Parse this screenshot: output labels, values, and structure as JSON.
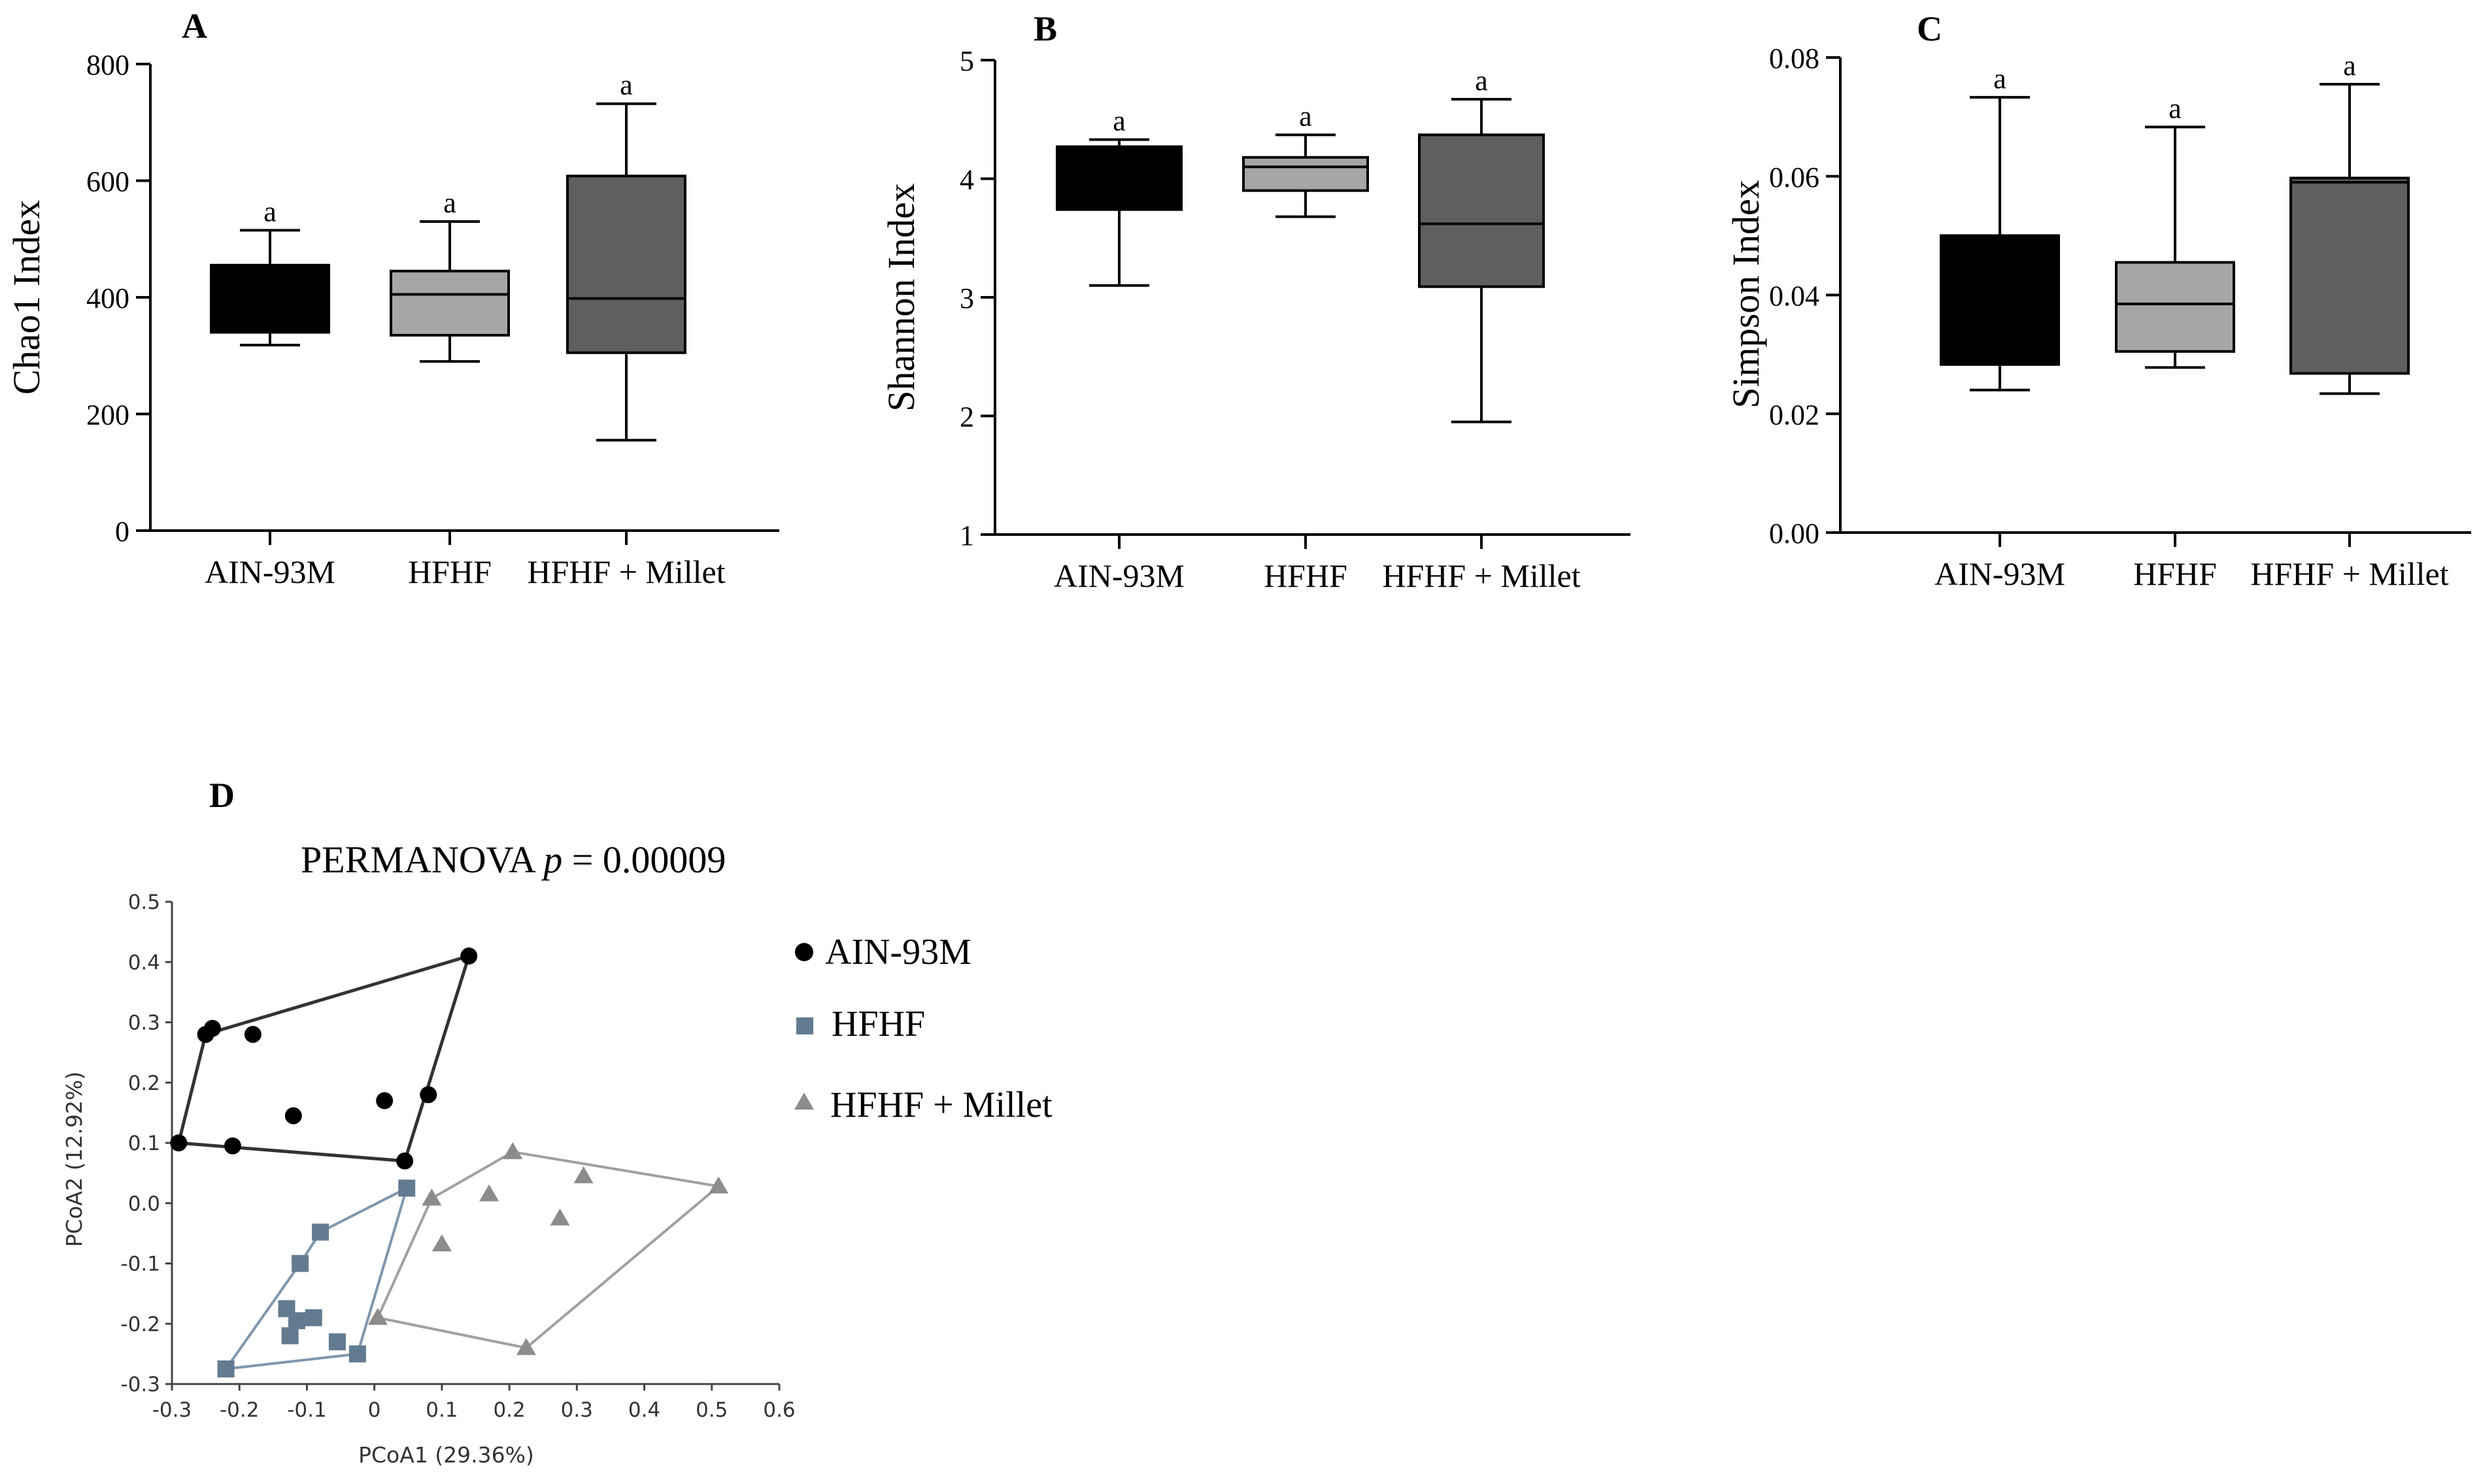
{
  "chart_data": [
    {
      "panel": "A",
      "type": "boxplot",
      "ylabel": "Chao1 Index",
      "ylim": [
        0,
        800
      ],
      "yticks": [
        "0",
        "200",
        "400",
        "600",
        "800"
      ],
      "categories": [
        "AIN-93M",
        "HFHF",
        "HFHF + Millet"
      ],
      "colors": [
        "#000000",
        "#a6a6a6",
        "#5f5f5f"
      ],
      "boxes": [
        {
          "min": 318,
          "q1": 340,
          "median": 455,
          "q3": 455,
          "max": 515
        },
        {
          "min": 290,
          "q1": 335,
          "median": 405,
          "q3": 445,
          "max": 530
        },
        {
          "min": 155,
          "q1": 305,
          "median": 398,
          "q3": 608,
          "max": 732
        }
      ],
      "annotations": [
        "a",
        "a",
        "a"
      ]
    },
    {
      "panel": "B",
      "type": "boxplot",
      "ylabel": "Shannon Index",
      "ylim": [
        1,
        5
      ],
      "yticks": [
        "1",
        "2",
        "3",
        "4",
        "5"
      ],
      "categories": [
        "AIN-93M",
        "HFHF",
        "HFHF + Millet"
      ],
      "colors": [
        "#000000",
        "#a6a6a6",
        "#5f5f5f"
      ],
      "boxes": [
        {
          "min": 3.1,
          "q1": 3.74,
          "median": 4.27,
          "q3": 4.27,
          "max": 4.33
        },
        {
          "min": 3.68,
          "q1": 3.9,
          "median": 4.1,
          "q3": 4.18,
          "max": 4.37
        },
        {
          "min": 1.95,
          "q1": 3.09,
          "median": 3.62,
          "q3": 4.37,
          "max": 4.67
        }
      ],
      "annotations": [
        "a",
        "a",
        "a"
      ]
    },
    {
      "panel": "C",
      "type": "boxplot",
      "ylabel": "Simpson Index",
      "ylim": [
        0,
        0.08
      ],
      "yticks": [
        "0.00",
        "0.02",
        "0.04",
        "0.06",
        "0.08"
      ],
      "categories": [
        "AIN-93M",
        "HFHF",
        "HFHF + Millet"
      ],
      "colors": [
        "#000000",
        "#a6a6a6",
        "#5f5f5f"
      ],
      "boxes": [
        {
          "min": 0.024,
          "q1": 0.0283,
          "median": 0.05,
          "q3": 0.05,
          "max": 0.0733
        },
        {
          "min": 0.0278,
          "q1": 0.0305,
          "median": 0.0385,
          "q3": 0.0455,
          "max": 0.0683
        },
        {
          "min": 0.0234,
          "q1": 0.0268,
          "median": 0.059,
          "q3": 0.0597,
          "max": 0.0755
        }
      ],
      "annotations": [
        "a",
        "a",
        "a"
      ]
    },
    {
      "panel": "D",
      "type": "scatter",
      "title_prefix": "PERMANOVA ",
      "title_italic": "p",
      "title_suffix": " = 0.00009",
      "xlabel": "PCoA1 (29.36%)",
      "ylabel": "PCoA2 (12.92%)",
      "xlim": [
        -0.3,
        0.6
      ],
      "ylim": [
        -0.3,
        0.5
      ],
      "xticks": [
        "-0.3",
        "-0.2",
        "-0.1",
        "0",
        "0.1",
        "0.2",
        "0.3",
        "0.4",
        "0.5",
        "0.6"
      ],
      "yticks": [
        "-0.3",
        "-0.2",
        "-0.1",
        "0.0",
        "0.1",
        "0.2",
        "0.3",
        "0.4",
        "0.5"
      ],
      "series": [
        {
          "name": "AIN-93M",
          "marker": "circle",
          "color": "#000000",
          "hull_color": "#333333",
          "points": [
            [
              -0.29,
              0.1
            ],
            [
              -0.25,
              0.28
            ],
            [
              -0.24,
              0.29
            ],
            [
              -0.18,
              0.28
            ],
            [
              -0.21,
              0.095
            ],
            [
              -0.12,
              0.145
            ],
            [
              0.015,
              0.17
            ],
            [
              0.08,
              0.18
            ],
            [
              0.045,
              0.07
            ],
            [
              0.14,
              0.41
            ]
          ],
          "hull": [
            [
              -0.29,
              0.1
            ],
            [
              -0.25,
              0.28
            ],
            [
              0.14,
              0.41
            ],
            [
              0.045,
              0.07
            ]
          ]
        },
        {
          "name": "HFHF",
          "marker": "square",
          "color": "#627b90",
          "hull_color": "#7f97ad",
          "points": [
            [
              -0.22,
              -0.275
            ],
            [
              -0.125,
              -0.22
            ],
            [
              -0.13,
              -0.175
            ],
            [
              -0.115,
              -0.195
            ],
            [
              -0.09,
              -0.19
            ],
            [
              -0.055,
              -0.23
            ],
            [
              -0.025,
              -0.25
            ],
            [
              -0.11,
              -0.1
            ],
            [
              -0.08,
              -0.048
            ],
            [
              0.048,
              0.025
            ]
          ],
          "hull": [
            [
              -0.22,
              -0.275
            ],
            [
              -0.11,
              -0.1
            ],
            [
              -0.08,
              -0.048
            ],
            [
              0.048,
              0.025
            ],
            [
              -0.025,
              -0.25
            ]
          ]
        },
        {
          "name": "HFHF + Millet",
          "marker": "triangle",
          "color": "#8c8c8c",
          "hull_color": "#a0a0a0",
          "points": [
            [
              0.005,
              -0.19
            ],
            [
              0.085,
              0.008
            ],
            [
              0.1,
              -0.068
            ],
            [
              0.17,
              0.015
            ],
            [
              0.205,
              0.085
            ],
            [
              0.275,
              -0.025
            ],
            [
              0.31,
              0.045
            ],
            [
              0.51,
              0.028
            ],
            [
              0.225,
              -0.24
            ]
          ],
          "hull": [
            [
              0.005,
              -0.19
            ],
            [
              0.085,
              0.008
            ],
            [
              0.205,
              0.085
            ],
            [
              0.51,
              0.028
            ],
            [
              0.225,
              -0.24
            ]
          ]
        }
      ]
    }
  ]
}
